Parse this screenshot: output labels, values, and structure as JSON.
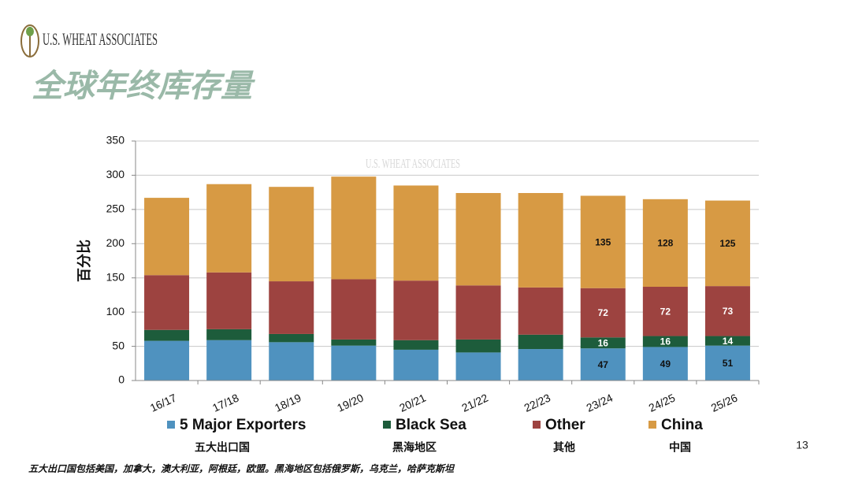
{
  "logo": "U.S. WHEAT ASSOCIATES",
  "title": "全球年终库存量",
  "page_number": "13",
  "footnote": "五大出口国包括美国，加拿大，澳大利亚，阿根廷，欧盟。黑海地区包括俄罗斯，乌克兰，哈萨克斯坦",
  "chart_data": {
    "type": "stacked-bar",
    "y_label": "百分比",
    "watermark": "U.S. WHEAT ASSOCIATES",
    "categories": [
      "16/17",
      "17/18",
      "18/19",
      "19/20",
      "20/21",
      "21/22",
      "22/23",
      "23/24",
      "24/25",
      "25/26"
    ],
    "ylim": [
      0,
      350
    ],
    "yticks": [
      0,
      50,
      100,
      150,
      200,
      250,
      300,
      350
    ],
    "grid": true,
    "series": [
      {
        "name": "5 Major Exporters",
        "label_cn": "五大出口国",
        "color": "#4f92bf",
        "values": [
          58,
          59,
          56,
          51,
          45,
          41,
          46,
          47,
          49,
          51
        ],
        "value_labels": [
          null,
          null,
          null,
          null,
          null,
          null,
          null,
          "47",
          "49",
          "51"
        ]
      },
      {
        "name": "Black Sea",
        "label_cn": "黑海地区",
        "color": "#1d5c3b",
        "values": [
          16,
          16,
          12,
          9,
          14,
          19,
          21,
          16,
          16,
          14
        ],
        "value_labels": [
          null,
          null,
          null,
          null,
          null,
          null,
          null,
          "16",
          "16",
          "14"
        ]
      },
      {
        "name": "Other",
        "label_cn": "其他",
        "color": "#9d4340",
        "values": [
          80,
          83,
          77,
          88,
          87,
          79,
          69,
          72,
          72,
          73
        ],
        "value_labels": [
          null,
          null,
          null,
          null,
          null,
          null,
          null,
          "72",
          "72",
          "73"
        ]
      },
      {
        "name": "China",
        "label_cn": "中国",
        "color": "#d79a44",
        "values": [
          113,
          129,
          138,
          150,
          139,
          135,
          138,
          135,
          128,
          125
        ],
        "value_labels": [
          null,
          null,
          null,
          null,
          null,
          null,
          null,
          "135",
          "128",
          "125"
        ]
      }
    ]
  }
}
